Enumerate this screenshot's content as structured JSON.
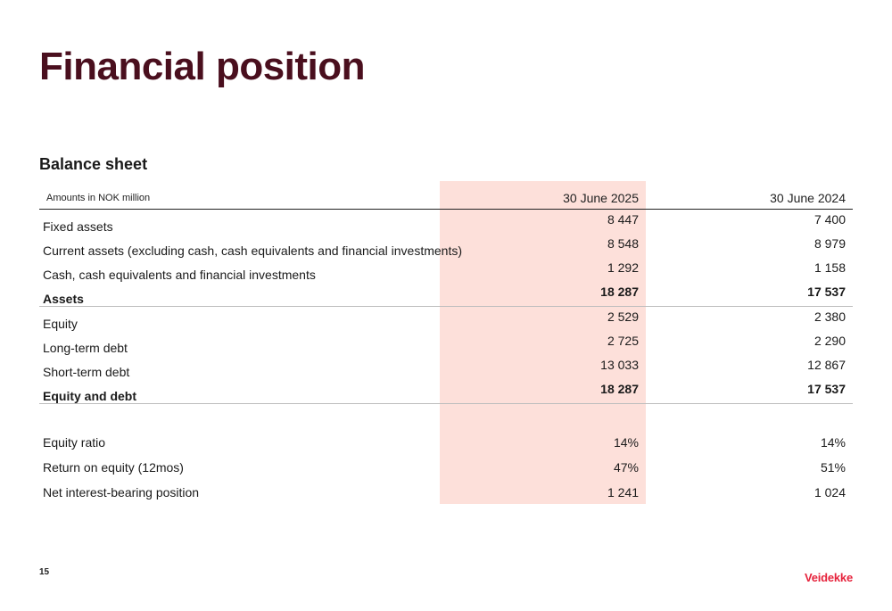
{
  "title": "Financial position",
  "section_title": "Balance sheet",
  "table": {
    "amounts_label": "Amounts in NOK million",
    "col1": "30 June 2025",
    "col2": "30 June 2024",
    "rows": [
      {
        "label": "Fixed assets",
        "v1": "8 447",
        "v2": "7 400",
        "bold": false
      },
      {
        "label": "Current assets (excluding cash, cash equivalents and financial investments)",
        "v1": "8 548",
        "v2": "8 979",
        "bold": false
      },
      {
        "label": "Cash, cash equivalents and financial investments",
        "v1": "1 292",
        "v2": "1 158",
        "bold": false
      },
      {
        "label": "Assets",
        "v1": "18 287",
        "v2": "17 537",
        "bold": true
      },
      {
        "label": "Equity",
        "v1": "2 529",
        "v2": "2 380",
        "bold": false
      },
      {
        "label": "Long-term debt",
        "v1": "2 725",
        "v2": "2 290",
        "bold": false
      },
      {
        "label": "Short-term debt",
        "v1": "13 033",
        "v2": "12 867",
        "bold": false
      },
      {
        "label": "Equity and debt",
        "v1": "18 287",
        "v2": "17 537",
        "bold": true
      }
    ],
    "kpis": [
      {
        "label": "Equity ratio",
        "v1": "14%",
        "v2": "14%"
      },
      {
        "label": "Return on equity (12mos)",
        "v1": "47%",
        "v2": "51%"
      },
      {
        "label": "Net interest-bearing position",
        "v1": "1 241",
        "v2": "1 024"
      }
    ]
  },
  "page_number": "15",
  "logo_text": "Veidekke",
  "colors": {
    "title": "#4a0f1e",
    "highlight": "#fde0da",
    "brand": "#e6233c"
  }
}
